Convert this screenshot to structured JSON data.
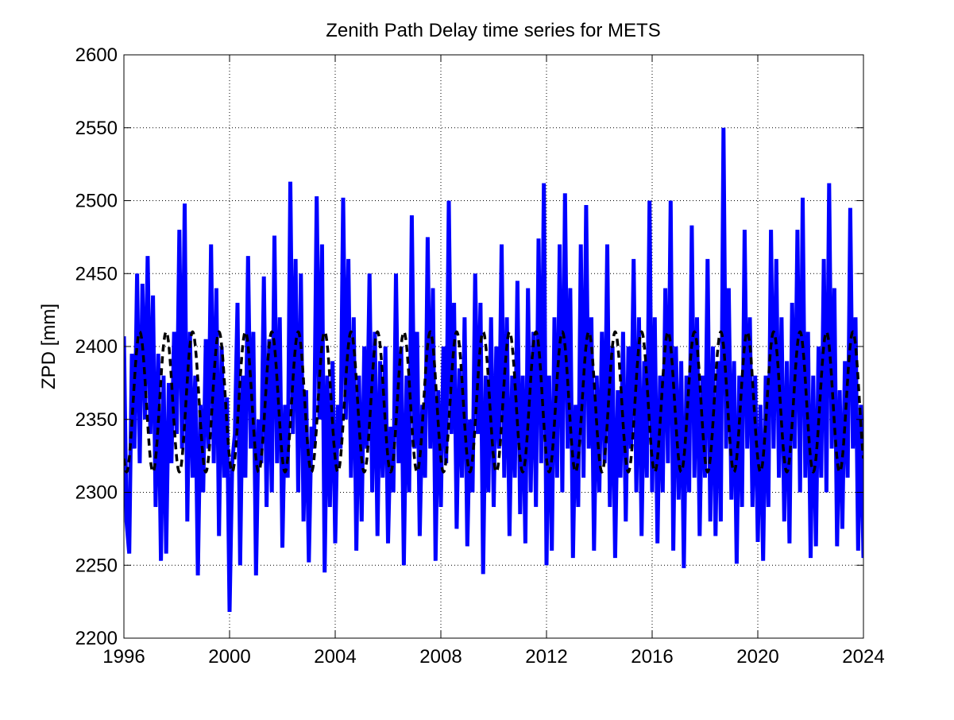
{
  "chart_data": {
    "type": "line",
    "title": "Zenith Path Delay time series for METS",
    "xlabel": "",
    "ylabel": "ZPD [mm]",
    "xlim": [
      1996,
      2024
    ],
    "ylim": [
      2200,
      2600
    ],
    "xticks": [
      1996,
      2000,
      2004,
      2008,
      2012,
      2016,
      2020,
      2024
    ],
    "yticks": [
      2200,
      2250,
      2300,
      2350,
      2400,
      2450,
      2500,
      2550,
      2600
    ],
    "grid": "dotted",
    "legend": "none",
    "series": [
      {
        "role": "observations",
        "color": "#0000ff",
        "style": "solid",
        "points": [
          [
            1996.0,
            2407
          ],
          [
            1996.1,
            2280
          ],
          [
            1996.2,
            2258
          ],
          [
            1996.3,
            2395
          ],
          [
            1996.4,
            2330
          ],
          [
            1996.5,
            2450
          ],
          [
            1996.6,
            2320
          ],
          [
            1996.7,
            2443
          ],
          [
            1996.8,
            2350
          ],
          [
            1996.9,
            2462
          ],
          [
            1997.0,
            2340
          ],
          [
            1997.1,
            2435
          ],
          [
            1997.2,
            2290
          ],
          [
            1997.3,
            2395
          ],
          [
            1997.4,
            2253
          ],
          [
            1997.5,
            2380
          ],
          [
            1997.6,
            2258
          ],
          [
            1997.7,
            2375
          ],
          [
            1997.8,
            2320
          ],
          [
            1997.9,
            2410
          ],
          [
            1998.0,
            2340
          ],
          [
            1998.1,
            2480
          ],
          [
            1998.2,
            2330
          ],
          [
            1998.3,
            2498
          ],
          [
            1998.4,
            2280
          ],
          [
            1998.5,
            2410
          ],
          [
            1998.6,
            2310
          ],
          [
            1998.7,
            2380
          ],
          [
            1998.8,
            2243
          ],
          [
            1998.9,
            2360
          ],
          [
            1999.0,
            2300
          ],
          [
            1999.1,
            2405
          ],
          [
            1999.2,
            2330
          ],
          [
            1999.3,
            2470
          ],
          [
            1999.4,
            2320
          ],
          [
            1999.5,
            2440
          ],
          [
            1999.6,
            2270
          ],
          [
            1999.7,
            2400
          ],
          [
            1999.8,
            2310
          ],
          [
            1999.9,
            2365
          ],
          [
            2000.0,
            2218
          ],
          [
            2000.1,
            2320
          ],
          [
            2000.2,
            2340
          ],
          [
            2000.3,
            2430
          ],
          [
            2000.4,
            2250
          ],
          [
            2000.5,
            2380
          ],
          [
            2000.6,
            2310
          ],
          [
            2000.7,
            2462
          ],
          [
            2000.8,
            2330
          ],
          [
            2000.9,
            2410
          ],
          [
            2001.0,
            2243
          ],
          [
            2001.1,
            2350
          ],
          [
            2001.2,
            2320
          ],
          [
            2001.3,
            2448
          ],
          [
            2001.4,
            2290
          ],
          [
            2001.5,
            2405
          ],
          [
            2001.6,
            2300
          ],
          [
            2001.7,
            2476
          ],
          [
            2001.8,
            2320
          ],
          [
            2001.9,
            2420
          ],
          [
            2002.0,
            2262
          ],
          [
            2002.1,
            2360
          ],
          [
            2002.2,
            2310
          ],
          [
            2002.3,
            2513
          ],
          [
            2002.4,
            2340
          ],
          [
            2002.5,
            2460
          ],
          [
            2002.6,
            2300
          ],
          [
            2002.7,
            2450
          ],
          [
            2002.8,
            2280
          ],
          [
            2002.9,
            2370
          ],
          [
            2003.0,
            2252
          ],
          [
            2003.1,
            2345
          ],
          [
            2003.2,
            2330
          ],
          [
            2003.3,
            2503
          ],
          [
            2003.4,
            2350
          ],
          [
            2003.5,
            2470
          ],
          [
            2003.6,
            2245
          ],
          [
            2003.7,
            2380
          ],
          [
            2003.8,
            2290
          ],
          [
            2003.9,
            2390
          ],
          [
            2004.0,
            2265
          ],
          [
            2004.1,
            2360
          ],
          [
            2004.2,
            2330
          ],
          [
            2004.3,
            2502
          ],
          [
            2004.4,
            2350
          ],
          [
            2004.5,
            2460
          ],
          [
            2004.6,
            2310
          ],
          [
            2004.7,
            2420
          ],
          [
            2004.8,
            2260
          ],
          [
            2004.9,
            2380
          ],
          [
            2005.0,
            2280
          ],
          [
            2005.1,
            2400
          ],
          [
            2005.2,
            2330
          ],
          [
            2005.3,
            2450
          ],
          [
            2005.4,
            2300
          ],
          [
            2005.5,
            2410
          ],
          [
            2005.6,
            2270
          ],
          [
            2005.7,
            2390
          ],
          [
            2005.8,
            2310
          ],
          [
            2005.9,
            2400
          ],
          [
            2006.0,
            2265
          ],
          [
            2006.1,
            2345
          ],
          [
            2006.2,
            2300
          ],
          [
            2006.3,
            2450
          ],
          [
            2006.4,
            2320
          ],
          [
            2006.5,
            2400
          ],
          [
            2006.6,
            2250
          ],
          [
            2006.7,
            2380
          ],
          [
            2006.8,
            2300
          ],
          [
            2006.9,
            2490
          ],
          [
            2007.0,
            2330
          ],
          [
            2007.1,
            2410
          ],
          [
            2007.2,
            2270
          ],
          [
            2007.3,
            2360
          ],
          [
            2007.4,
            2310
          ],
          [
            2007.5,
            2475
          ],
          [
            2007.6,
            2330
          ],
          [
            2007.7,
            2440
          ],
          [
            2007.8,
            2253
          ],
          [
            2007.9,
            2370
          ],
          [
            2008.0,
            2290
          ],
          [
            2008.1,
            2400
          ],
          [
            2008.2,
            2320
          ],
          [
            2008.3,
            2500
          ],
          [
            2008.4,
            2340
          ],
          [
            2008.5,
            2430
          ],
          [
            2008.6,
            2275
          ],
          [
            2008.7,
            2385
          ],
          [
            2008.8,
            2310
          ],
          [
            2008.9,
            2420
          ],
          [
            2009.0,
            2263
          ],
          [
            2009.1,
            2350
          ],
          [
            2009.2,
            2300
          ],
          [
            2009.3,
            2450
          ],
          [
            2009.4,
            2340
          ],
          [
            2009.5,
            2430
          ],
          [
            2009.6,
            2244
          ],
          [
            2009.7,
            2380
          ],
          [
            2009.8,
            2300
          ],
          [
            2009.9,
            2420
          ],
          [
            2010.0,
            2290
          ],
          [
            2010.1,
            2400
          ],
          [
            2010.2,
            2330
          ],
          [
            2010.3,
            2470
          ],
          [
            2010.4,
            2310
          ],
          [
            2010.5,
            2420
          ],
          [
            2010.6,
            2270
          ],
          [
            2010.7,
            2380
          ],
          [
            2010.8,
            2310
          ],
          [
            2010.9,
            2445
          ],
          [
            2011.0,
            2285
          ],
          [
            2011.1,
            2380
          ],
          [
            2011.2,
            2265
          ],
          [
            2011.3,
            2440
          ],
          [
            2011.4,
            2300
          ],
          [
            2011.5,
            2410
          ],
          [
            2011.6,
            2290
          ],
          [
            2011.7,
            2474
          ],
          [
            2011.8,
            2320
          ],
          [
            2011.9,
            2512
          ],
          [
            2012.0,
            2250
          ],
          [
            2012.1,
            2380
          ],
          [
            2012.2,
            2260
          ],
          [
            2012.3,
            2420
          ],
          [
            2012.4,
            2310
          ],
          [
            2012.5,
            2470
          ],
          [
            2012.6,
            2300
          ],
          [
            2012.7,
            2505
          ],
          [
            2012.8,
            2330
          ],
          [
            2012.9,
            2440
          ],
          [
            2013.0,
            2255
          ],
          [
            2013.1,
            2360
          ],
          [
            2013.2,
            2290
          ],
          [
            2013.3,
            2470
          ],
          [
            2013.4,
            2310
          ],
          [
            2013.5,
            2497
          ],
          [
            2013.6,
            2330
          ],
          [
            2013.7,
            2420
          ],
          [
            2013.8,
            2260
          ],
          [
            2013.9,
            2380
          ],
          [
            2014.0,
            2300
          ],
          [
            2014.1,
            2410
          ],
          [
            2014.2,
            2320
          ],
          [
            2014.3,
            2470
          ],
          [
            2014.4,
            2290
          ],
          [
            2014.5,
            2400
          ],
          [
            2014.6,
            2255
          ],
          [
            2014.7,
            2370
          ],
          [
            2014.8,
            2310
          ],
          [
            2014.9,
            2410
          ],
          [
            2015.0,
            2280
          ],
          [
            2015.1,
            2400
          ],
          [
            2015.2,
            2330
          ],
          [
            2015.3,
            2460
          ],
          [
            2015.4,
            2300
          ],
          [
            2015.5,
            2420
          ],
          [
            2015.6,
            2270
          ],
          [
            2015.7,
            2390
          ],
          [
            2015.8,
            2310
          ],
          [
            2015.9,
            2500
          ],
          [
            2016.0,
            2300
          ],
          [
            2016.1,
            2420
          ],
          [
            2016.2,
            2265
          ],
          [
            2016.3,
            2380
          ],
          [
            2016.4,
            2300
          ],
          [
            2016.5,
            2440
          ],
          [
            2016.6,
            2320
          ],
          [
            2016.7,
            2500
          ],
          [
            2016.8,
            2260
          ],
          [
            2016.9,
            2400
          ],
          [
            2017.0,
            2295
          ],
          [
            2017.1,
            2390
          ],
          [
            2017.2,
            2248
          ],
          [
            2017.3,
            2380
          ],
          [
            2017.4,
            2300
          ],
          [
            2017.5,
            2483
          ],
          [
            2017.6,
            2310
          ],
          [
            2017.7,
            2420
          ],
          [
            2017.8,
            2270
          ],
          [
            2017.9,
            2380
          ],
          [
            2018.0,
            2310
          ],
          [
            2018.1,
            2460
          ],
          [
            2018.2,
            2280
          ],
          [
            2018.3,
            2400
          ],
          [
            2018.4,
            2270
          ],
          [
            2018.5,
            2390
          ],
          [
            2018.6,
            2280
          ],
          [
            2018.7,
            2550
          ],
          [
            2018.8,
            2330
          ],
          [
            2018.9,
            2440
          ],
          [
            2019.0,
            2295
          ],
          [
            2019.1,
            2390
          ],
          [
            2019.2,
            2251
          ],
          [
            2019.3,
            2380
          ],
          [
            2019.4,
            2290
          ],
          [
            2019.5,
            2480
          ],
          [
            2019.6,
            2330
          ],
          [
            2019.7,
            2420
          ],
          [
            2019.8,
            2290
          ],
          [
            2019.9,
            2380
          ],
          [
            2020.0,
            2266
          ],
          [
            2020.1,
            2360
          ],
          [
            2020.2,
            2253
          ],
          [
            2020.3,
            2380
          ],
          [
            2020.4,
            2290
          ],
          [
            2020.5,
            2480
          ],
          [
            2020.6,
            2330
          ],
          [
            2020.7,
            2460
          ],
          [
            2020.8,
            2310
          ],
          [
            2020.9,
            2420
          ],
          [
            2021.0,
            2280
          ],
          [
            2021.1,
            2390
          ],
          [
            2021.2,
            2265
          ],
          [
            2021.3,
            2430
          ],
          [
            2021.4,
            2330
          ],
          [
            2021.5,
            2480
          ],
          [
            2021.6,
            2300
          ],
          [
            2021.7,
            2502
          ],
          [
            2021.8,
            2310
          ],
          [
            2021.9,
            2410
          ],
          [
            2022.0,
            2255
          ],
          [
            2022.1,
            2380
          ],
          [
            2022.2,
            2263
          ],
          [
            2022.3,
            2400
          ],
          [
            2022.4,
            2310
          ],
          [
            2022.5,
            2460
          ],
          [
            2022.6,
            2300
          ],
          [
            2022.7,
            2512
          ],
          [
            2022.8,
            2330
          ],
          [
            2022.9,
            2440
          ],
          [
            2023.0,
            2263
          ],
          [
            2023.1,
            2370
          ],
          [
            2023.2,
            2275
          ],
          [
            2023.3,
            2390
          ],
          [
            2023.4,
            2310
          ],
          [
            2023.5,
            2495
          ],
          [
            2023.6,
            2330
          ],
          [
            2023.7,
            2420
          ],
          [
            2023.8,
            2260
          ],
          [
            2023.9,
            2360
          ],
          [
            2024.0,
            2255
          ]
        ]
      },
      {
        "role": "seasonal-model",
        "color": "#000000",
        "style": "dashed",
        "mean": 2362,
        "amplitude": 48,
        "period_years": 1,
        "peak_phase_years": 0.6
      }
    ]
  }
}
